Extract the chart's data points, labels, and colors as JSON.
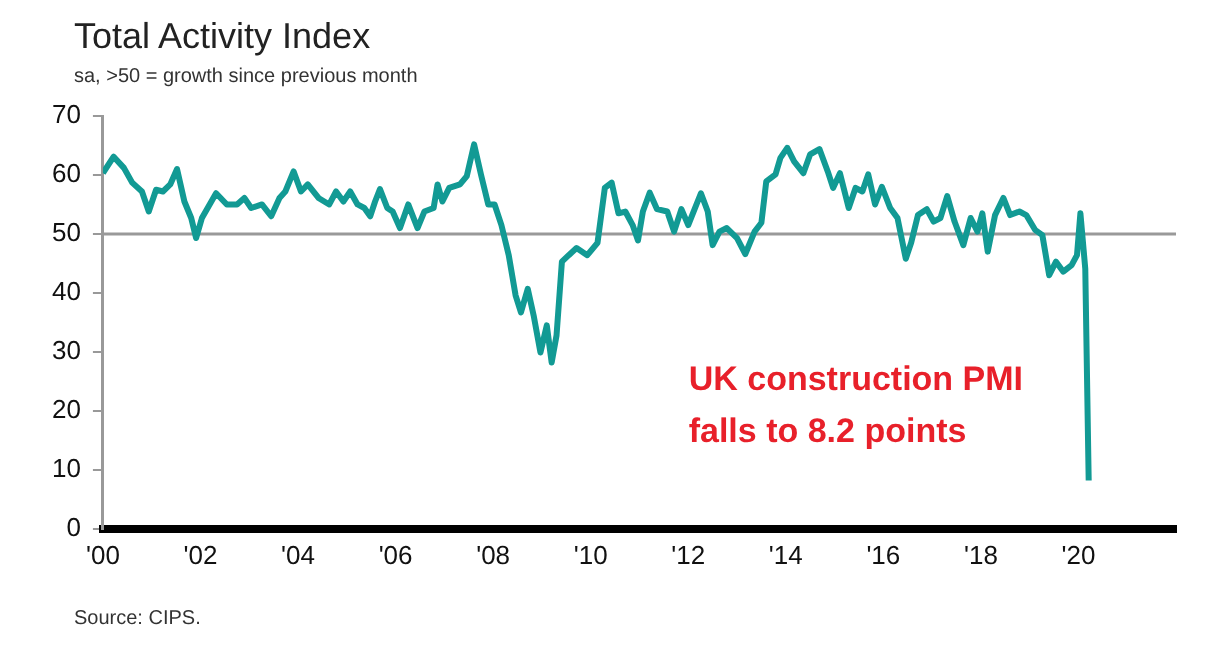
{
  "chart_data": {
    "type": "line",
    "title": "Total Activity Index",
    "subtitle": "sa, >50 = growth since previous month",
    "x": [
      2000.0,
      2000.22,
      2000.43,
      2000.6,
      2000.8,
      2000.94,
      2001.09,
      2001.23,
      2001.38,
      2001.52,
      2001.67,
      2001.81,
      2001.91,
      2002.03,
      2002.32,
      2002.54,
      2002.75,
      2002.9,
      2003.04,
      2003.26,
      2003.45,
      2003.62,
      2003.74,
      2003.91,
      2004.06,
      2004.2,
      2004.42,
      2004.64,
      2004.78,
      2004.93,
      2005.07,
      2005.22,
      2005.36,
      2005.48,
      2005.58,
      2005.68,
      2005.83,
      2005.94,
      2006.09,
      2006.26,
      2006.45,
      2006.59,
      2006.78,
      2006.86,
      2006.96,
      2007.1,
      2007.32,
      2007.46,
      2007.61,
      2007.75,
      2007.9,
      2008.03,
      2008.17,
      2008.32,
      2008.46,
      2008.57,
      2008.71,
      2008.83,
      2008.97,
      2009.1,
      2009.2,
      2009.3,
      2009.41,
      2009.55,
      2009.71,
      2009.93,
      2010.14,
      2010.29,
      2010.43,
      2010.57,
      2010.71,
      2010.86,
      2010.97,
      2011.07,
      2011.21,
      2011.36,
      2011.57,
      2011.71,
      2011.86,
      2012.0,
      2012.11,
      2012.26,
      2012.4,
      2012.5,
      2012.64,
      2012.79,
      2013.0,
      2013.17,
      2013.36,
      2013.5,
      2013.6,
      2013.79,
      2013.89,
      2014.03,
      2014.17,
      2014.36,
      2014.5,
      2014.69,
      2014.86,
      2014.97,
      2015.11,
      2015.29,
      2015.43,
      2015.57,
      2015.69,
      2015.83,
      2015.97,
      2016.14,
      2016.29,
      2016.46,
      2016.57,
      2016.71,
      2016.89,
      2017.03,
      2017.17,
      2017.31,
      2017.46,
      2017.64,
      2017.79,
      2017.93,
      2018.03,
      2018.14,
      2018.29,
      2018.46,
      2018.6,
      2018.79,
      2018.93,
      2019.11,
      2019.26,
      2019.4,
      2019.54,
      2019.69,
      2019.86,
      2019.97,
      2020.04,
      2020.14,
      2020.21
    ],
    "values": [
      60.3,
      63.1,
      61.2,
      58.7,
      57.2,
      53.8,
      57.5,
      57.2,
      58.4,
      61,
      55.5,
      52.7,
      49.3,
      52.7,
      56.9,
      55,
      55,
      56.1,
      54.4,
      55,
      53,
      56.1,
      57.2,
      60.6,
      57.2,
      58.4,
      56.1,
      55,
      57.2,
      55.5,
      57.2,
      55,
      54.4,
      53,
      55.5,
      57.6,
      54.4,
      53.8,
      51,
      55,
      51,
      53.8,
      54.4,
      58.4,
      55.5,
      57.8,
      58.4,
      59.8,
      65.2,
      60.1,
      55,
      55,
      51.5,
      46.4,
      39.6,
      36.7,
      40.7,
      36.2,
      29.9,
      34.5,
      28.2,
      32.8,
      45.3,
      46.4,
      47.6,
      46.4,
      48.5,
      57.8,
      58.7,
      53.5,
      53.8,
      51.5,
      48.9,
      53.8,
      57,
      54.2,
      53.8,
      50.4,
      54.2,
      51.5,
      53.8,
      56.9,
      53.8,
      48.1,
      50.4,
      51,
      49.3,
      46.6,
      50.4,
      51.9,
      58.9,
      60.1,
      62.9,
      64.6,
      62.3,
      60.3,
      63.5,
      64.4,
      60.6,
      57.8,
      60.3,
      54.4,
      57.8,
      57.2,
      60.1,
      55,
      58,
      54.4,
      52.7,
      45.8,
      48.5,
      53.2,
      54.2,
      52.1,
      52.7,
      56.4,
      52.1,
      48.1,
      52.7,
      50.4,
      53.5,
      47,
      53.2,
      56.1,
      53.2,
      53.8,
      53.2,
      50.7,
      49.8,
      43,
      45.3,
      43.6,
      44.7,
      46.4,
      53.5,
      44.1,
      8.2
    ],
    "color": "#129a94",
    "xlim": [
      2000,
      2022
    ],
    "xticks": [
      {
        "value": 2000,
        "label": "'00"
      },
      {
        "value": 2002,
        "label": "'02"
      },
      {
        "value": 2004,
        "label": "'04"
      },
      {
        "value": 2006,
        "label": "'06"
      },
      {
        "value": 2008,
        "label": "'08"
      },
      {
        "value": 2010,
        "label": "'10"
      },
      {
        "value": 2012,
        "label": "'12"
      },
      {
        "value": 2014,
        "label": "'14"
      },
      {
        "value": 2016,
        "label": "'16"
      },
      {
        "value": 2018,
        "label": "'18"
      },
      {
        "value": 2020,
        "label": "'20"
      }
    ],
    "ylim": [
      0,
      70
    ],
    "yticks": [
      0,
      10,
      20,
      30,
      40,
      50,
      60,
      70
    ],
    "ref_lines": [
      {
        "axis": "y",
        "value": 50,
        "color": "#999999"
      }
    ],
    "annotations": [
      {
        "text": "UK construction PMI falls to 8.2 points",
        "x": 2020.21,
        "y": 8.2
      },
      "Source: CIPS."
    ],
    "grid": false,
    "legend": false
  }
}
